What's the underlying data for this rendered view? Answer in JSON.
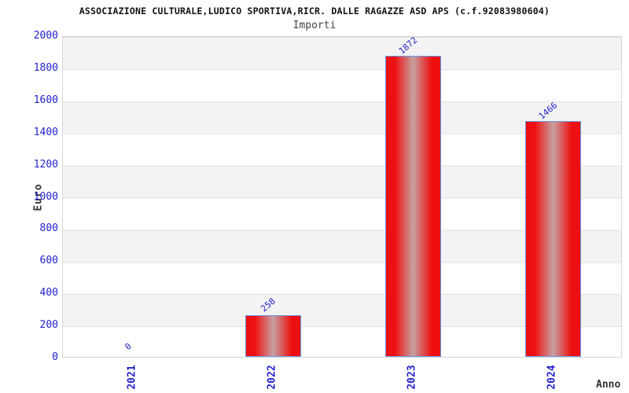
{
  "chart_data": {
    "type": "bar",
    "title": "ASSOCIAZIONE CULTURALE,LUDICO SPORTIVA,RICR. DALLE RAGAZZE ASD APS (c.f.92083980604)",
    "subtitle": "Importi",
    "xlabel": "Anno",
    "ylabel": "Euro",
    "categories": [
      "2021",
      "2022",
      "2023",
      "2024"
    ],
    "values": [
      0,
      258,
      1872,
      1466
    ],
    "bar_value_labels": [
      "0",
      "258",
      "1872",
      "1466"
    ],
    "ylim": [
      0,
      2000
    ],
    "ytick_step": 200,
    "ytick_labels": [
      "0",
      "200",
      "400",
      "600",
      "800",
      "1000",
      "1200",
      "1400",
      "1600",
      "1800",
      "2000"
    ],
    "grid": "horizontal-bands",
    "legend_position": "none"
  },
  "colors": {
    "tick_text": "#2222cc",
    "value_label_text": "#2222cc",
    "bar_red": "#ee1010",
    "bar_center": "#c7a0a0",
    "bar_border": "#6699e8",
    "band_gray": "#f3f3f3",
    "band_white": "#ffffff",
    "grid_line": "#e2e2e2",
    "plot_border": "#d6d6d6",
    "title_text": "#111111",
    "subtitle_text": "#444444",
    "axis_label_text": "#333333"
  }
}
